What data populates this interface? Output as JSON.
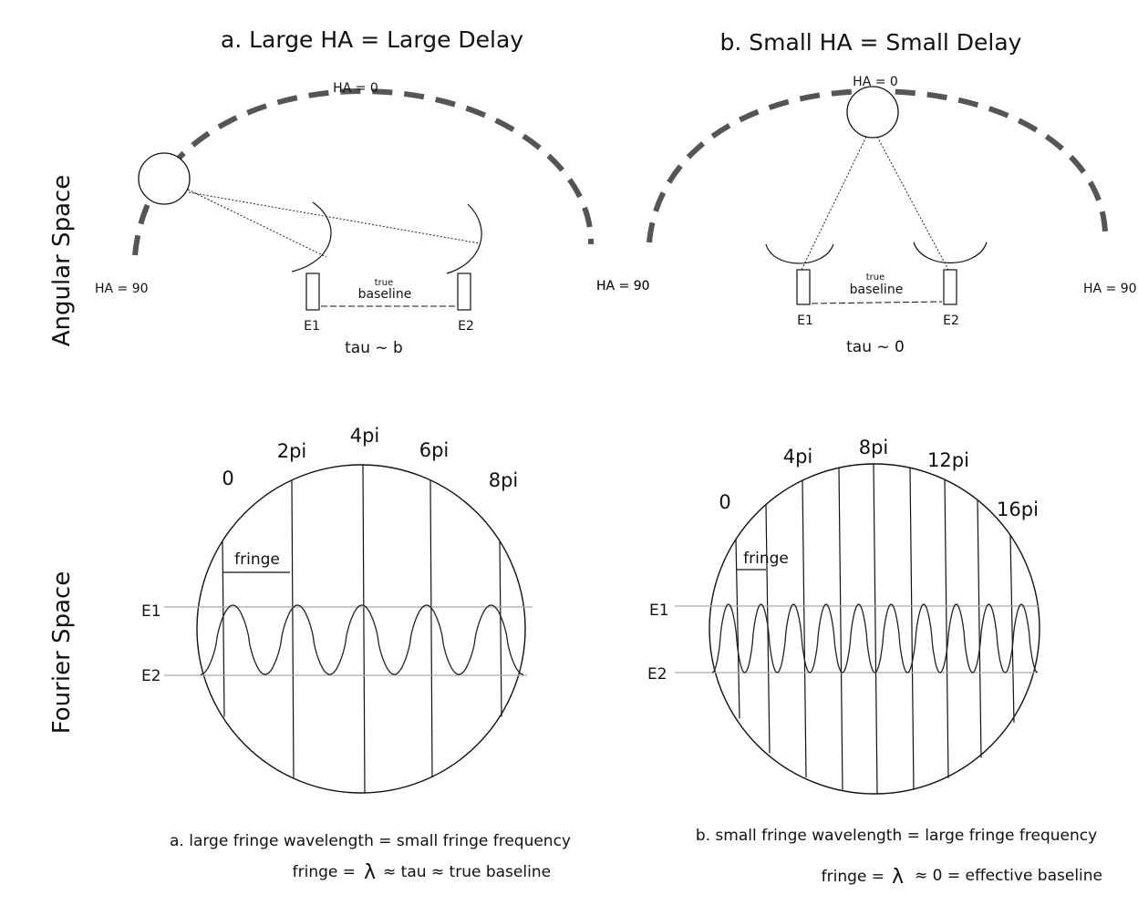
{
  "panel_a": {
    "title": "a. Large HA = Large Delay",
    "ha_top": "HA = 0",
    "ha_left": "HA = 90",
    "ha_right": "HA = 90",
    "true_small": "true",
    "baseline": "baseline",
    "e1": "E1",
    "e2": "E2",
    "tau": "tau ~ b",
    "phases": [
      "0",
      "2pi",
      "4pi",
      "6pi",
      "8pi"
    ],
    "fringe_label": "fringe",
    "level_e1": "E1",
    "level_e2": "E2",
    "caption1": "a. large fringe wavelength = small fringe frequency",
    "caption2_prefix": "fringe =",
    "lambda": "λ",
    "caption2_suffix": "≈ tau ≈ true baseline",
    "fringe_cycles": 5
  },
  "panel_b": {
    "title": "b. Small HA = Small Delay",
    "ha_top": "HA = 0",
    "ha_left": "HA = 90",
    "ha_right": "HA = 90",
    "true_small": "true",
    "baseline": "baseline",
    "e1": "E1",
    "e2": "E2",
    "tau": "tau ~ 0",
    "phases": [
      "0",
      "4pi",
      "8pi",
      "12pi",
      "16pi"
    ],
    "fringe_label": "fringe",
    "level_e1": "E1",
    "level_e2": "E2",
    "caption1": "b. small fringe wavelength = large fringe frequency",
    "caption2_prefix": "fringe =",
    "lambda": "λ",
    "caption2_suffix": "≈ 0  = effective baseline",
    "fringe_cycles": 10
  },
  "side_labels": {
    "angular": "Angular Space",
    "fourier": "Fourier Space"
  }
}
